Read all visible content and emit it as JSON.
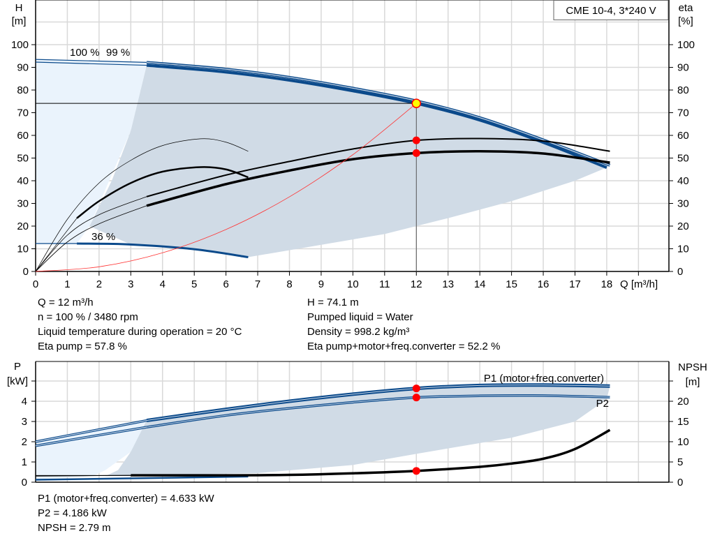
{
  "chart_data": [
    {
      "type": "line",
      "title": "",
      "legend_box": "CME 10-4, 3*240 V",
      "xlabel": "Q [m³/h]",
      "ylabel_left": [
        "H",
        "[m]"
      ],
      "ylabel_right": [
        "eta",
        "[%]"
      ],
      "xlim": [
        0,
        20
      ],
      "ylim": [
        0,
        120
      ],
      "x_ticks": [
        0,
        1,
        2,
        3,
        4,
        5,
        6,
        7,
        8,
        9,
        10,
        11,
        12,
        13,
        14,
        15,
        16,
        17,
        18
      ],
      "y_ticks": [
        0,
        10,
        20,
        30,
        40,
        50,
        60,
        70,
        80,
        90,
        100
      ],
      "grid": true,
      "curve_labels": {
        "speed_100": "100 %",
        "speed_99": "99 %",
        "speed_min": "36 %"
      },
      "series": [
        {
          "key": "h100",
          "color": "#0b4a8b",
          "x": [
            0,
            3.5,
            6,
            8,
            10,
            12,
            14,
            16,
            18.1
          ],
          "y": [
            93.5,
            92.2,
            89.2,
            85.6,
            80.8,
            75.2,
            67.8,
            58,
            46.8
          ]
        },
        {
          "key": "h99",
          "color": "#0b4a8b",
          "x": [
            0,
            3.5,
            6,
            8,
            10,
            12,
            14,
            16,
            18
          ],
          "y": [
            92.3,
            90.9,
            87.9,
            84.3,
            79.6,
            74.1,
            66.7,
            56.9,
            45.8
          ]
        },
        {
          "key": "hmin",
          "color": "#0b4a8b",
          "x": [
            0,
            1.3,
            3,
            5,
            6.7
          ],
          "y": [
            12.3,
            12.3,
            11.9,
            9.8,
            6.3
          ]
        },
        {
          "key": "eta_pump",
          "color": "#000000",
          "x": [
            0,
            1,
            2,
            3.5,
            6,
            8,
            10,
            12,
            14,
            16,
            18.1
          ],
          "y": [
            0,
            16,
            25,
            33,
            42.5,
            48.5,
            54,
            57.8,
            58.6,
            57.5,
            53
          ]
        },
        {
          "key": "eta_total",
          "color": "#000000",
          "x": [
            0,
            1,
            2,
            3.5,
            6,
            8,
            10,
            12,
            14,
            16,
            18.1
          ],
          "y": [
            0,
            13,
            21,
            29,
            38.5,
            44.5,
            49.5,
            52.2,
            53,
            52,
            48
          ]
        },
        {
          "key": "eta_pump_min",
          "color": "#000000",
          "x": [
            0,
            1,
            2,
            3,
            4,
            5.2,
            6,
            6.7
          ],
          "y": [
            0,
            23,
            39,
            49,
            55.5,
            58.5,
            57,
            53
          ]
        },
        {
          "key": "eta_total_min",
          "color": "#000000",
          "x": [
            0,
            1.3,
            2,
            3,
            4,
            5.2,
            6,
            6.7
          ],
          "y": [
            0,
            23.5,
            31,
            39,
            44,
            46,
            45,
            41.5
          ]
        },
        {
          "key": "system",
          "color": "#ff3333",
          "x": [
            0,
            2,
            4,
            6,
            8,
            10,
            12
          ],
          "y": [
            0,
            2.06,
            8.23,
            18.5,
            32.9,
            51.5,
            74.1
          ]
        }
      ],
      "operating_point": {
        "Q": 12,
        "H": 74.1,
        "eta_pump": 57.8,
        "eta_total": 52.2
      }
    },
    {
      "type": "line",
      "title": "",
      "ylabel_left": [
        "P",
        "[kW]"
      ],
      "ylabel_right": [
        "NPSH",
        "[m]"
      ],
      "xlim": [
        0,
        20
      ],
      "ylim_left": [
        0,
        6
      ],
      "ylim_right": [
        0,
        30
      ],
      "y_ticks_left": [
        0,
        1,
        2,
        3,
        4
      ],
      "y_ticks_right": [
        0,
        5,
        10,
        15,
        20
      ],
      "grid": true,
      "series": [
        {
          "name": "P1 (motor+freq.converter)",
          "color": "#0b4a8b",
          "x": [
            0,
            3.5,
            6,
            8,
            10,
            12,
            14,
            16,
            18.1
          ],
          "y": [
            2.0,
            3.05,
            3.6,
            4.0,
            4.35,
            4.633,
            4.78,
            4.8,
            4.75
          ]
        },
        {
          "name": "P2",
          "color": "#0b4a8b",
          "x": [
            0,
            3.5,
            6,
            8,
            10,
            12,
            14,
            16,
            18.1
          ],
          "y": [
            1.8,
            2.72,
            3.3,
            3.65,
            3.95,
            4.186,
            4.27,
            4.28,
            4.2
          ]
        },
        {
          "key": "npsh",
          "color": "#000000",
          "x": [
            0,
            3,
            6,
            8,
            10,
            12,
            14,
            15,
            16,
            17,
            18.1
          ],
          "y": [
            1.5,
            1.7,
            1.7,
            1.8,
            2.2,
            2.79,
            3.8,
            4.6,
            5.8,
            8.2,
            12.9
          ]
        }
      ],
      "operating_point": {
        "Q": 12,
        "P1": 4.633,
        "P2": 4.186,
        "NPSH": 2.79
      }
    }
  ],
  "info_top_left": [
    "Q = 12 m³/h",
    "n = 100 % / 3480 rpm",
    "Liquid temperature during operation = 20 °C",
    "Eta pump = 57.8 %"
  ],
  "info_top_right": [
    "H = 74.1 m",
    "Pumped liquid = Water",
    "Density = 998.2 kg/m³",
    "Eta pump+motor+freq.converter = 52.2 %"
  ],
  "info_bottom": [
    "P1 (motor+freq.converter) = 4.633 kW",
    "P2 = 4.186 kW",
    "NPSH = 2.79 m"
  ],
  "colors": {
    "curve_blue": "#0b4a8b",
    "range_fill": "#d0dbe6",
    "light_fill": "#eaf3fc",
    "grid": "#d9d9d9",
    "marker": "#ff0000",
    "op_point": "#ffff00"
  }
}
